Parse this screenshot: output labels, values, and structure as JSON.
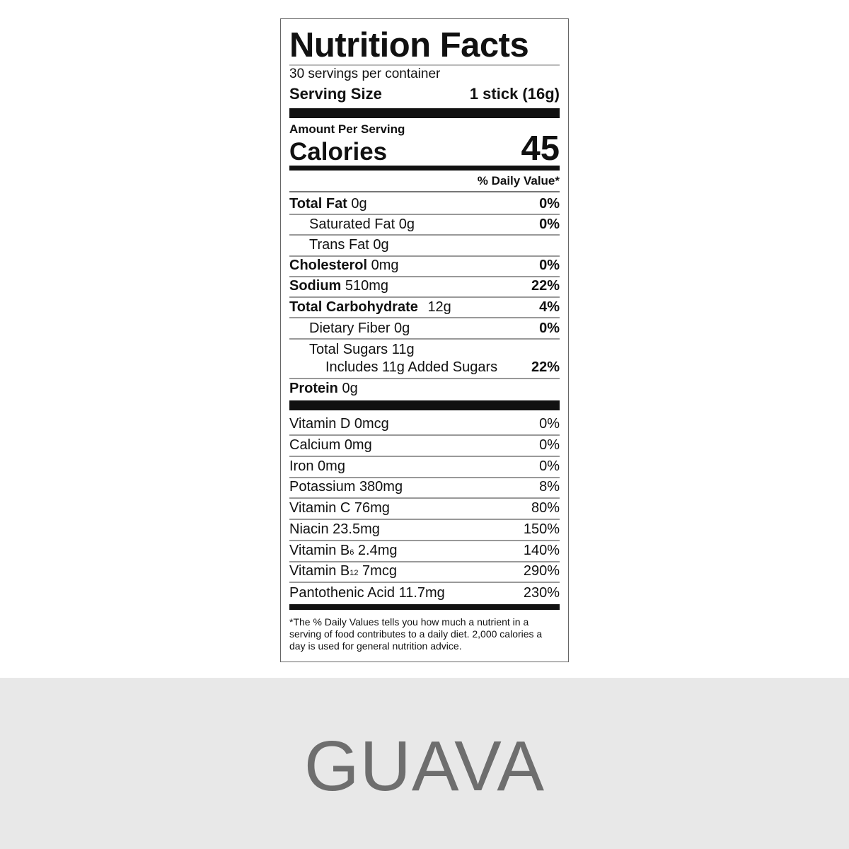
{
  "label": {
    "title": "Nutrition Facts",
    "servings_count": "30",
    "servings_text": "servings per container",
    "serving_size_label": "Serving Size",
    "serving_size_value": "1 stick (16g)",
    "amount_per_serving": "Amount Per Serving",
    "calories_label": "Calories",
    "calories_value": "45",
    "daily_value_header": "% Daily Value*",
    "nutrients": [
      {
        "name": "Total Fat",
        "amount": "0g",
        "dv": "0%",
        "bold": true,
        "indent": 0
      },
      {
        "name": "Saturated Fat",
        "amount": "0g",
        "dv": "0%",
        "bold": false,
        "indent": 1
      },
      {
        "name": "Trans Fat",
        "amount": "0g",
        "dv": "",
        "bold": false,
        "indent": 1
      },
      {
        "name": "Cholesterol",
        "amount": "0mg",
        "dv": "0%",
        "bold": true,
        "indent": 0
      },
      {
        "name": "Sodium",
        "amount": "510mg",
        "dv": "22%",
        "bold": true,
        "indent": 0
      },
      {
        "name": "Total Carbohydrate",
        "amount": "12g",
        "dv": "4%",
        "bold": true,
        "indent": 0
      },
      {
        "name": "Dietary Fiber",
        "amount": "0g",
        "dv": "0%",
        "bold": false,
        "indent": 1
      },
      {
        "name": "Total Sugars",
        "amount": "11g",
        "dv": "",
        "bold": false,
        "indent": 1
      },
      {
        "name": "Includes 11g Added Sugars",
        "amount": "",
        "dv": "22%",
        "bold": false,
        "indent": 2
      },
      {
        "name": "Protein",
        "amount": "0g",
        "dv": "",
        "bold": true,
        "indent": 0
      }
    ],
    "vitamins": [
      {
        "name": "Vitamin D",
        "sub": "",
        "amount": "0mcg",
        "dv": "0%"
      },
      {
        "name": "Calcium",
        "sub": "",
        "amount": "0mg",
        "dv": "0%"
      },
      {
        "name": "Iron",
        "sub": "",
        "amount": "0mg",
        "dv": "0%"
      },
      {
        "name": "Potassium",
        "sub": "",
        "amount": "380mg",
        "dv": "8%"
      },
      {
        "name": "Vitamin C",
        "sub": "",
        "amount": "76mg",
        "dv": "80%"
      },
      {
        "name": "Niacin",
        "sub": "",
        "amount": "23.5mg",
        "dv": "150%"
      },
      {
        "name": "Vitamin B",
        "sub": "6",
        "amount": "2.4mg",
        "dv": "140%"
      },
      {
        "name": "Vitamin B",
        "sub": "12",
        "amount": "7mcg",
        "dv": "290%"
      },
      {
        "name": "Pantothenic Acid",
        "sub": "",
        "amount": "11.7mg",
        "dv": "230%"
      }
    ],
    "footnote": "*The % Daily Values tells you how much a nutrient in a serving of food contributes to a daily diet. 2,000 calories a day is used for general nutrition advice."
  },
  "flavor": "GUAVA",
  "colors": {
    "band": "#e8e8e8",
    "flavor_text": "#6e6e6e",
    "ink": "#111111"
  }
}
